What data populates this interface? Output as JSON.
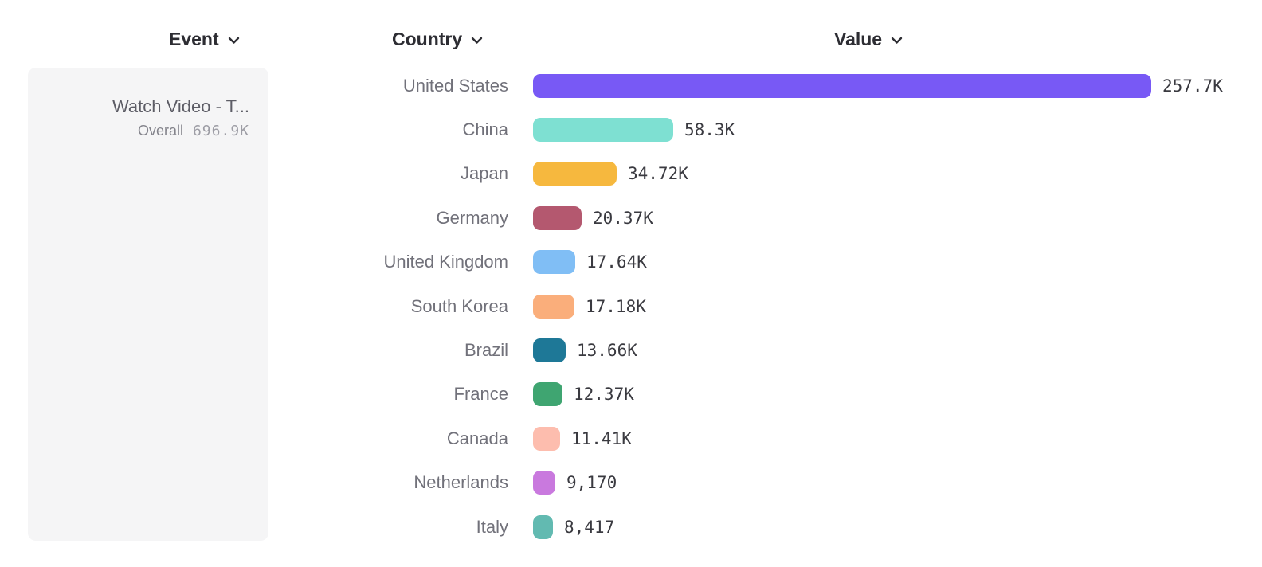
{
  "headers": {
    "event": {
      "label": "Event"
    },
    "country": {
      "label": "Country"
    },
    "value": {
      "label": "Value"
    }
  },
  "event_panel": {
    "event_name": "Watch Video - T...",
    "overall_label": "Overall",
    "overall_value": "696.9K"
  },
  "chart_data": {
    "type": "bar",
    "orientation": "horizontal",
    "title": "",
    "xlabel": "Value",
    "ylabel": "Country",
    "grid": false,
    "legend": false,
    "xlim": [
      0,
      257700
    ],
    "categories": [
      "United States",
      "China",
      "Japan",
      "Germany",
      "United Kingdom",
      "South Korea",
      "Brazil",
      "France",
      "Canada",
      "Netherlands",
      "Italy"
    ],
    "values": [
      257700,
      58300,
      34720,
      20370,
      17640,
      17180,
      13660,
      12370,
      11410,
      9170,
      8417
    ],
    "value_labels": [
      "257.7K",
      "58.3K",
      "34.72K",
      "20.37K",
      "17.64K",
      "17.18K",
      "13.66K",
      "12.37K",
      "11.41K",
      "9,170",
      "8,417"
    ],
    "bar_colors": [
      "#7859f5",
      "#7ee0d2",
      "#f6b83e",
      "#b4586f",
      "#80bef5",
      "#faae7b",
      "#1e7897",
      "#3fa571",
      "#fdbdae",
      "#c979de",
      "#62bab1"
    ]
  },
  "colors": {
    "card_bg": "#f5f5f6",
    "header_text": "#2d2d33",
    "label_text": "#71717a",
    "value_text": "#3a3a40"
  }
}
